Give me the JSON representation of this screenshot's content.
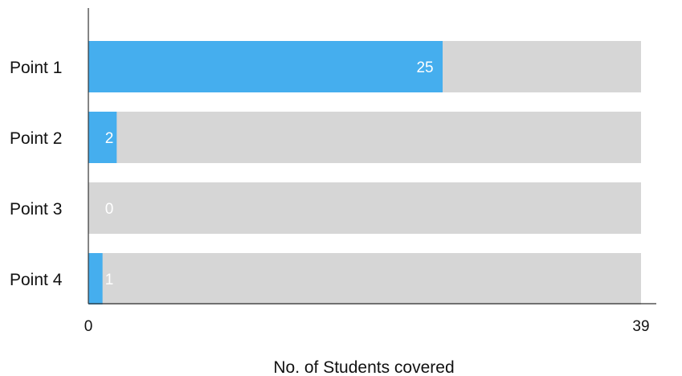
{
  "chart_data": {
    "type": "bar",
    "orientation": "horizontal",
    "categories": [
      "Point 1",
      "Point 2",
      "Point 3",
      "Point 4"
    ],
    "series": [
      {
        "values": [
          25,
          2,
          0,
          1
        ]
      }
    ],
    "max_value": 39,
    "xlim": [
      0,
      39
    ],
    "xticks": [
      "0",
      "39"
    ],
    "xlabel": "No. of Students covered",
    "ylabel": "",
    "title": "",
    "data_labels": [
      "25",
      "2",
      "0",
      "1"
    ],
    "colors": {
      "bar": "#45aeee",
      "track": "#d6d6d6",
      "axis": "#333333",
      "data_label": "#ffffff"
    },
    "grid": false,
    "legend": "none"
  }
}
